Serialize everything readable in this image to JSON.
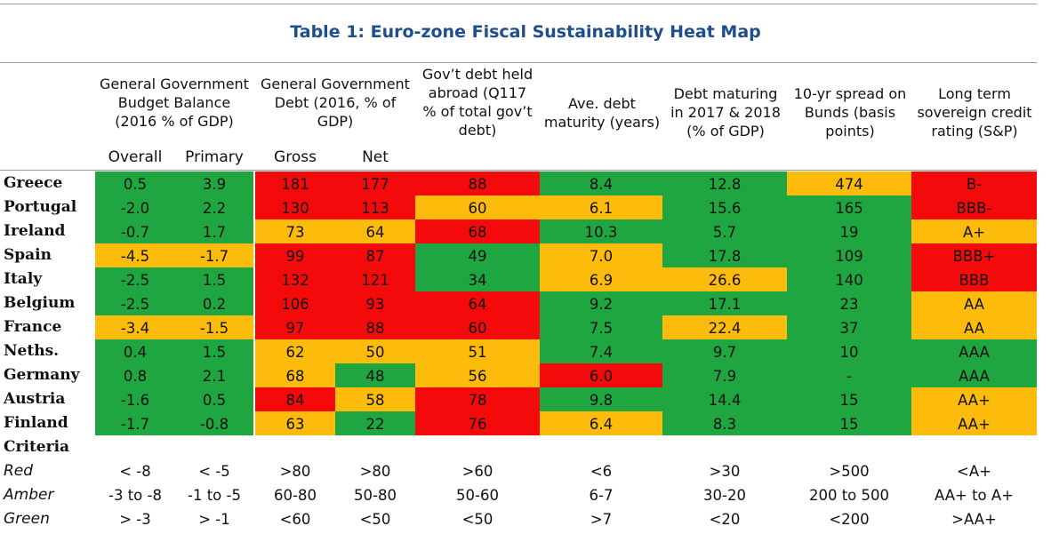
{
  "title": "Table 1: Euro-zone Fiscal Sustainability Heat Map",
  "headers": [
    "General Government Budget Balance (2016 % of GDP)",
    "General Government Debt (2016, % of GDP)",
    "Gov’t debt held abroad (Q117 % of total gov’t debt)",
    "Ave. debt maturity (years)",
    "Debt maturing in 2017 & 2018 (% of GDP)",
    "10-yr spread on Bunds (basis points)",
    "Long term sovereign credit rating (S&P)"
  ],
  "header_lines": {
    "h0": [
      "General Government",
      "Budget Balance",
      "(2016 % of GDP)"
    ],
    "h1": [
      "General Government",
      "Debt (2016, % of",
      "GDP)"
    ],
    "h2": [
      "Gov’t debt held",
      "abroad (Q117",
      "% of total gov’t",
      "debt)"
    ],
    "h3": [
      "Ave. debt",
      "maturity (years)"
    ],
    "h4": [
      "Debt maturing",
      "in 2017 & 2018",
      "(% of GDP)"
    ],
    "h5": [
      "10-yr spread on",
      "Bunds (basis",
      "points)"
    ],
    "h6": [
      "Long term",
      "sovereign credit",
      "rating (S&P)"
    ]
  },
  "subheaders": [
    "Overall",
    "Primary",
    "Gross",
    "Net"
  ],
  "rows": [
    {
      "country": "Greece",
      "cells": [
        [
          "0.5",
          "g"
        ],
        [
          "3.9",
          "g"
        ],
        [
          "181",
          "r"
        ],
        [
          "177",
          "r"
        ],
        [
          "88",
          "r"
        ],
        [
          "8.4",
          "g"
        ],
        [
          "12.8",
          "g"
        ],
        [
          "474",
          "a"
        ],
        [
          "B-",
          "r"
        ]
      ]
    },
    {
      "country": "Portugal",
      "cells": [
        [
          "-2.0",
          "g"
        ],
        [
          "2.2",
          "g"
        ],
        [
          "130",
          "r"
        ],
        [
          "113",
          "r"
        ],
        [
          "60",
          "a"
        ],
        [
          "6.1",
          "a"
        ],
        [
          "15.6",
          "g"
        ],
        [
          "165",
          "g"
        ],
        [
          "BBB-",
          "r"
        ]
      ]
    },
    {
      "country": "Ireland",
      "cells": [
        [
          "-0.7",
          "g"
        ],
        [
          "1.7",
          "g"
        ],
        [
          "73",
          "a"
        ],
        [
          "64",
          "a"
        ],
        [
          "68",
          "r"
        ],
        [
          "10.3",
          "g"
        ],
        [
          "5.7",
          "g"
        ],
        [
          "19",
          "g"
        ],
        [
          "A+",
          "a"
        ]
      ]
    },
    {
      "country": "Spain",
      "cells": [
        [
          "-4.5",
          "a"
        ],
        [
          "-1.7",
          "a"
        ],
        [
          "99",
          "r"
        ],
        [
          "87",
          "r"
        ],
        [
          "49",
          "g"
        ],
        [
          "7.0",
          "a"
        ],
        [
          "17.8",
          "g"
        ],
        [
          "109",
          "g"
        ],
        [
          "BBB+",
          "r"
        ]
      ]
    },
    {
      "country": "Italy",
      "cells": [
        [
          "-2.5",
          "g"
        ],
        [
          "1.5",
          "g"
        ],
        [
          "132",
          "r"
        ],
        [
          "121",
          "r"
        ],
        [
          "34",
          "g"
        ],
        [
          "6.9",
          "a"
        ],
        [
          "26.6",
          "a"
        ],
        [
          "140",
          "g"
        ],
        [
          "BBB",
          "r"
        ]
      ]
    },
    {
      "country": "Belgium",
      "cells": [
        [
          "-2.5",
          "g"
        ],
        [
          "0.2",
          "g"
        ],
        [
          "106",
          "r"
        ],
        [
          "93",
          "r"
        ],
        [
          "64",
          "r"
        ],
        [
          "9.2",
          "g"
        ],
        [
          "17.1",
          "g"
        ],
        [
          "23",
          "g"
        ],
        [
          "AA",
          "a"
        ]
      ]
    },
    {
      "country": "France",
      "cells": [
        [
          "-3.4",
          "a"
        ],
        [
          "-1.5",
          "a"
        ],
        [
          "97",
          "r"
        ],
        [
          "88",
          "r"
        ],
        [
          "60",
          "r"
        ],
        [
          "7.5",
          "g"
        ],
        [
          "22.4",
          "a"
        ],
        [
          "37",
          "g"
        ],
        [
          "AA",
          "a"
        ]
      ]
    },
    {
      "country": "Neths.",
      "cells": [
        [
          "0.4",
          "g"
        ],
        [
          "1.5",
          "g"
        ],
        [
          "62",
          "a"
        ],
        [
          "50",
          "a"
        ],
        [
          "51",
          "a"
        ],
        [
          "7.4",
          "g"
        ],
        [
          "9.7",
          "g"
        ],
        [
          "10",
          "g"
        ],
        [
          "AAA",
          "g"
        ]
      ]
    },
    {
      "country": "Germany",
      "cells": [
        [
          "0.8",
          "g"
        ],
        [
          "2.1",
          "g"
        ],
        [
          "68",
          "a"
        ],
        [
          "48",
          "g"
        ],
        [
          "56",
          "a"
        ],
        [
          "6.0",
          "r"
        ],
        [
          "7.9",
          "g"
        ],
        [
          "-",
          "g"
        ],
        [
          "AAA",
          "g"
        ]
      ]
    },
    {
      "country": "Austria",
      "cells": [
        [
          "-1.6",
          "g"
        ],
        [
          "0.5",
          "g"
        ],
        [
          "84",
          "r"
        ],
        [
          "58",
          "a"
        ],
        [
          "78",
          "r"
        ],
        [
          "9.8",
          "g"
        ],
        [
          "14.4",
          "g"
        ],
        [
          "15",
          "g"
        ],
        [
          "AA+",
          "a"
        ]
      ]
    },
    {
      "country": "Finland",
      "cells": [
        [
          "-1.7",
          "g"
        ],
        [
          "-0.8",
          "g"
        ],
        [
          "63",
          "a"
        ],
        [
          "22",
          "g"
        ],
        [
          "76",
          "r"
        ],
        [
          "6.4",
          "a"
        ],
        [
          "8.3",
          "g"
        ],
        [
          "15",
          "g"
        ],
        [
          "AA+",
          "a"
        ]
      ]
    }
  ],
  "criteria": {
    "label": "Criteria",
    "rows": [
      {
        "label": "Red",
        "values": [
          "< -8",
          "< -5",
          ">80",
          ">80",
          ">60",
          "<6",
          ">30",
          ">500",
          "<A+"
        ]
      },
      {
        "label": "Amber",
        "values": [
          "-3 to -8",
          "-1 to -5",
          "60-80",
          "50-80",
          "50-60",
          "6-7",
          "30-20",
          "200 to 500",
          "AA+ to A+"
        ]
      },
      {
        "label": "Green",
        "values": [
          "> -3",
          "> -1",
          "<60",
          "<50",
          "<50",
          ">7",
          "<20",
          "<200",
          ">AA+"
        ]
      }
    ]
  },
  "colors": {
    "g": "#1fa640",
    "a": "#fdbc0b",
    "r": "#f40a0a",
    "title": "#1f4e8c"
  }
}
